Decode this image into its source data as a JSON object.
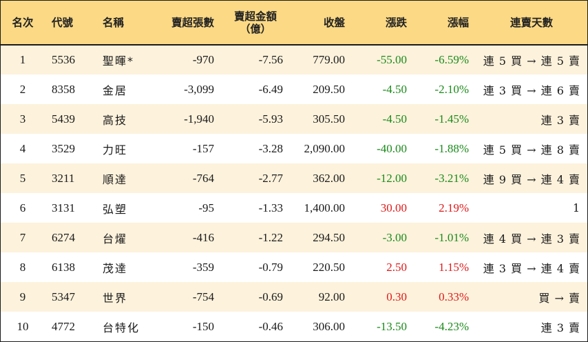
{
  "colors": {
    "header_bg": "#fbd985",
    "odd_row_bg": "#fdf2dc",
    "even_row_bg": "#ffffff",
    "negative": "#1a8a1a",
    "positive": "#e01818"
  },
  "headers": {
    "rank": "名次",
    "code": "代號",
    "name": "名稱",
    "net_sell_lots": "賣超張數",
    "net_sell_amount": "賣超金額",
    "net_sell_amount_unit": "（億）",
    "close": "收盤",
    "change": "漲跌",
    "change_pct": "漲幅",
    "streak": "連賣天數"
  },
  "rows": [
    {
      "rank": "1",
      "code": "5536",
      "name": "聖暉*",
      "lots": "-970",
      "amount": "-7.56",
      "close": "779.00",
      "change": "-55.00",
      "pct": "-6.59%",
      "dir": "neg",
      "streak": "連 5 買 → 連 5 賣"
    },
    {
      "rank": "2",
      "code": "8358",
      "name": "金居",
      "lots": "-3,099",
      "amount": "-6.49",
      "close": "209.50",
      "change": "-4.50",
      "pct": "-2.10%",
      "dir": "neg",
      "streak": "連 3 買 → 連 6 賣"
    },
    {
      "rank": "3",
      "code": "5439",
      "name": "高技",
      "lots": "-1,940",
      "amount": "-5.93",
      "close": "305.50",
      "change": "-4.50",
      "pct": "-1.45%",
      "dir": "neg",
      "streak": "連 3 賣"
    },
    {
      "rank": "4",
      "code": "3529",
      "name": "力旺",
      "lots": "-157",
      "amount": "-3.28",
      "close": "2,090.00",
      "change": "-40.00",
      "pct": "-1.88%",
      "dir": "neg",
      "streak": "連 5 買 → 連 8 賣"
    },
    {
      "rank": "5",
      "code": "3211",
      "name": "順達",
      "lots": "-764",
      "amount": "-2.77",
      "close": "362.00",
      "change": "-12.00",
      "pct": "-3.21%",
      "dir": "neg",
      "streak": "連 9 買 → 連 4 賣"
    },
    {
      "rank": "6",
      "code": "3131",
      "name": "弘塑",
      "lots": "-95",
      "amount": "-1.33",
      "close": "1,400.00",
      "change": "30.00",
      "pct": "2.19%",
      "dir": "pos",
      "streak": "1"
    },
    {
      "rank": "7",
      "code": "6274",
      "name": "台燿",
      "lots": "-416",
      "amount": "-1.22",
      "close": "294.50",
      "change": "-3.00",
      "pct": "-1.01%",
      "dir": "neg",
      "streak": "連 4 買 → 連 3 賣"
    },
    {
      "rank": "8",
      "code": "6138",
      "name": "茂達",
      "lots": "-359",
      "amount": "-0.79",
      "close": "220.50",
      "change": "2.50",
      "pct": "1.15%",
      "dir": "pos",
      "streak": "連 3 買 → 連 4 賣"
    },
    {
      "rank": "9",
      "code": "5347",
      "name": "世界",
      "lots": "-754",
      "amount": "-0.69",
      "close": "92.00",
      "change": "0.30",
      "pct": "0.33%",
      "dir": "pos",
      "streak": "買 → 賣"
    },
    {
      "rank": "10",
      "code": "4772",
      "name": "台特化",
      "lots": "-150",
      "amount": "-0.46",
      "close": "306.00",
      "change": "-13.50",
      "pct": "-4.23%",
      "dir": "neg",
      "streak": "連 3 賣"
    }
  ]
}
